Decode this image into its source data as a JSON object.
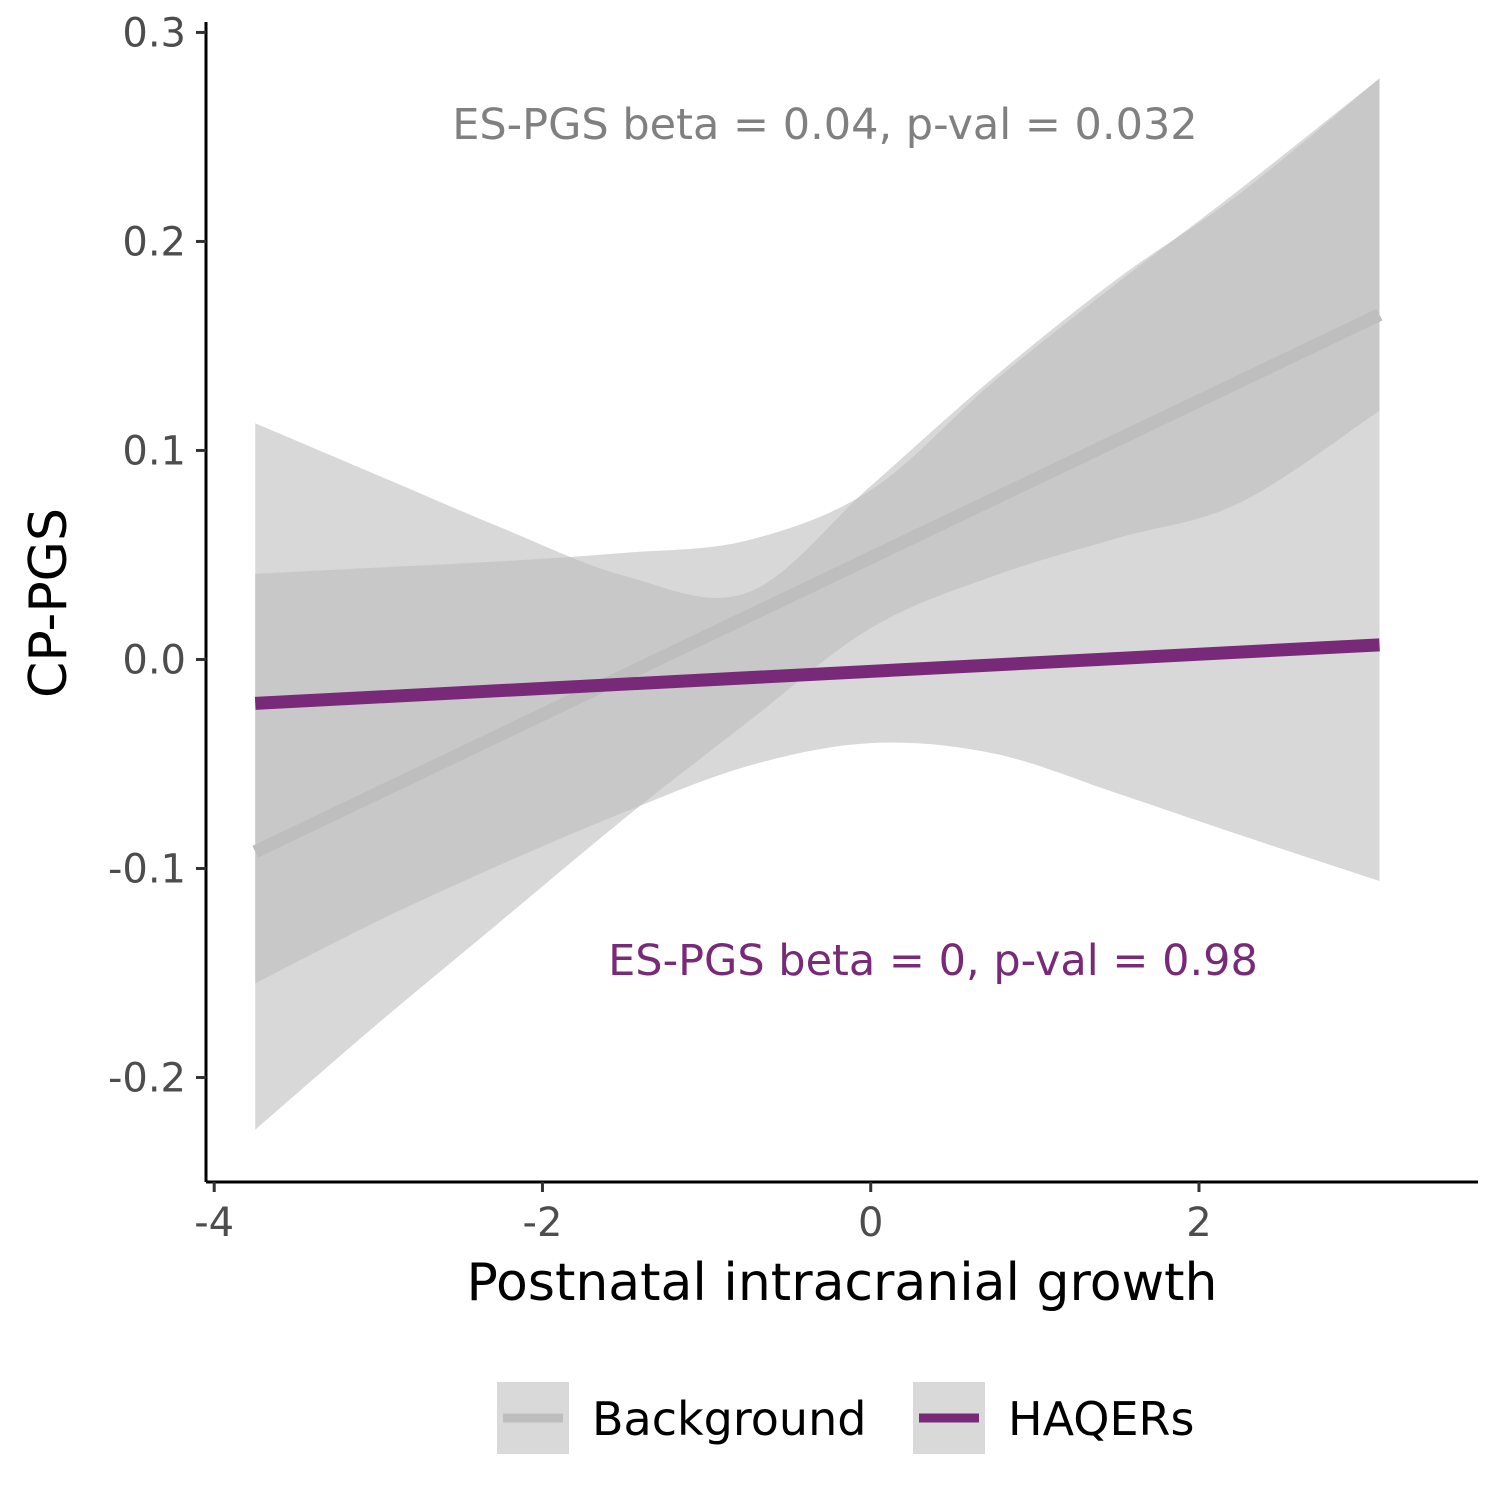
{
  "chart_data": {
    "type": "line",
    "title": "",
    "xlabel": "Postnatal intracranial growth",
    "ylabel": "CP-PGS",
    "xlim": [
      -4.05,
      3.7
    ],
    "ylim": [
      -0.25,
      0.305
    ],
    "x_ticks": [
      -4,
      -2,
      0,
      2
    ],
    "x_tick_labels": [
      "-4",
      "-2",
      "0",
      "2"
    ],
    "y_ticks": [
      -0.2,
      -0.1,
      0.0,
      0.1,
      0.2,
      0.3
    ],
    "y_tick_labels": [
      "-0.2",
      "-0.1",
      "0.0",
      "0.1",
      "0.2",
      "0.3"
    ],
    "grid": false,
    "legend_position": "bottom",
    "series": [
      {
        "name": "Background",
        "color": "#bebebe",
        "band_color": "#bebebe",
        "line": {
          "x": [
            -3.75,
            3.1
          ],
          "y": [
            -0.092,
            0.165
          ]
        },
        "ci_band": {
          "x": [
            -3.75,
            -3.0,
            -2.25,
            -1.5,
            -0.75,
            0.0,
            0.75,
            1.5,
            2.25,
            3.1
          ],
          "lower": [
            -0.225,
            -0.174,
            -0.125,
            -0.076,
            -0.03,
            0.015,
            0.04,
            0.058,
            0.075,
            0.119
          ],
          "upper": [
            0.113,
            0.088,
            0.063,
            0.04,
            0.032,
            0.083,
            0.135,
            0.182,
            0.223,
            0.278
          ]
        }
      },
      {
        "name": "HAQERs",
        "color": "#782a78",
        "band_color": "#bebebe",
        "line": {
          "x": [
            -3.75,
            3.1
          ],
          "y": [
            -0.021,
            0.007
          ]
        },
        "ci_band": {
          "x": [
            -3.75,
            -3.0,
            -2.25,
            -1.5,
            -0.75,
            0.0,
            0.75,
            1.5,
            2.25,
            3.1
          ],
          "lower": [
            -0.155,
            -0.125,
            -0.098,
            -0.073,
            -0.051,
            -0.04,
            -0.045,
            -0.064,
            -0.084,
            -0.106
          ],
          "upper": [
            0.041,
            0.044,
            0.047,
            0.051,
            0.057,
            0.081,
            0.133,
            0.18,
            0.225,
            0.278
          ]
        }
      }
    ],
    "annotations": [
      {
        "text": "ES-PGS beta = 0.04, p-val = 0.032",
        "x": -2.55,
        "y": 0.249,
        "color": "#808080"
      },
      {
        "text": "ES-PGS beta = 0, p-val = 0.98",
        "x": -1.6,
        "y": -0.151,
        "color": "#782a78"
      }
    ]
  },
  "legend": {
    "items": [
      {
        "label": "Background",
        "color": "#bebebe"
      },
      {
        "label": "HAQERs",
        "color": "#782a78"
      }
    ]
  }
}
